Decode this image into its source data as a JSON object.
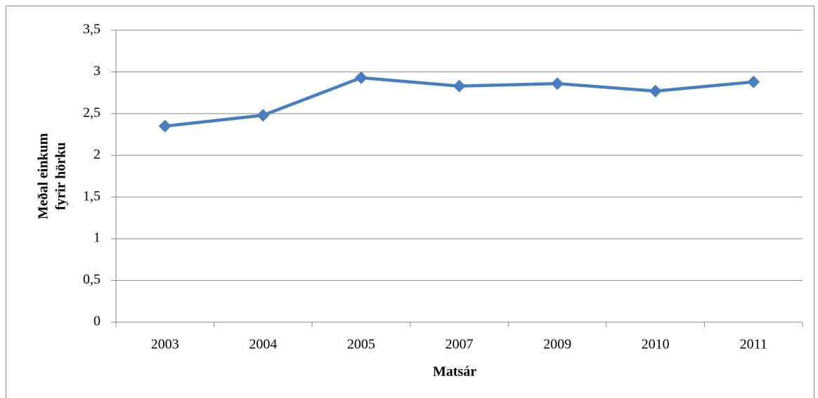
{
  "chart_data": {
    "type": "line",
    "xlabel": "Matsár",
    "ylabel": [
      "Meðal einkum",
      "fyrir hörku"
    ],
    "categories": [
      "2003",
      "2004",
      "2005",
      "2007",
      "2009",
      "2010",
      "2011"
    ],
    "series": [
      {
        "color": "#4a7ebb",
        "values": [
          2.35,
          2.48,
          2.93,
          2.83,
          2.86,
          2.77,
          2.88
        ]
      }
    ],
    "ylim": [
      0,
      3.5
    ],
    "yticks": [
      0,
      {
        "value": 0.5,
        "label": "0,5"
      },
      1,
      {
        "value": 1.5,
        "label": "1,5"
      },
      2,
      {
        "value": 2.5,
        "label": "2,5"
      },
      3,
      {
        "value": 3.5,
        "label": "3,5"
      }
    ],
    "grid": true
  }
}
